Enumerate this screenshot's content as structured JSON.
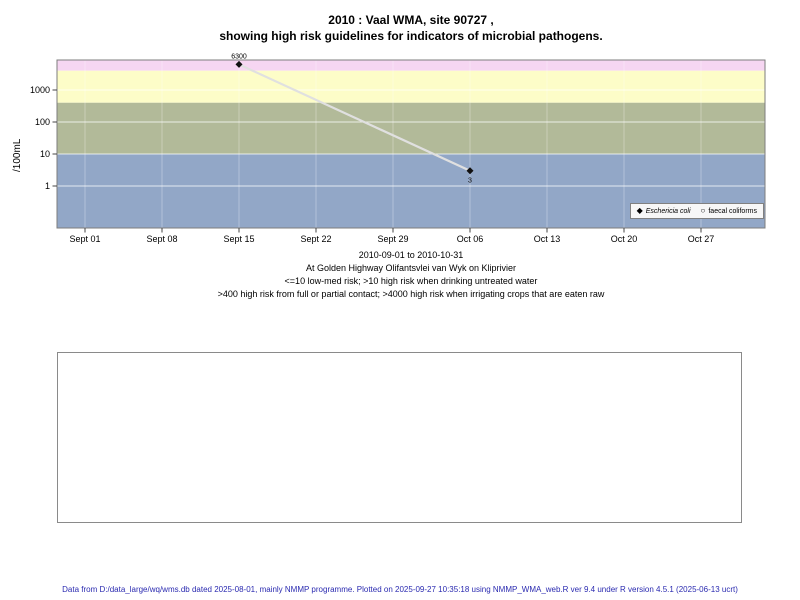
{
  "title": {
    "line1": "2010 : Vaal WMA, site 90727 ,",
    "line2": "showing high risk guidelines for indicators of microbial pathogens."
  },
  "chart_data": {
    "type": "scatter",
    "title": "2010 : Vaal WMA, site 90727, showing high risk guidelines for indicators of microbial pathogens.",
    "ylabel": "/100mL",
    "y_scale": "log",
    "y_ticks": [
      1,
      10,
      100,
      1000
    ],
    "x_ticks": [
      {
        "label": "Sept 01",
        "date": "2010-09-01"
      },
      {
        "label": "Sept 08",
        "date": "2010-09-08"
      },
      {
        "label": "Sept 15",
        "date": "2010-09-15"
      },
      {
        "label": "Sept 22",
        "date": "2010-09-22"
      },
      {
        "label": "Sept 29",
        "date": "2010-09-29"
      },
      {
        "label": "Oct 06",
        "date": "2010-10-06"
      },
      {
        "label": "Oct 13",
        "date": "2010-10-13"
      },
      {
        "label": "Oct 20",
        "date": "2010-10-20"
      },
      {
        "label": "Oct 27",
        "date": "2010-10-27"
      }
    ],
    "series": [
      {
        "name": "Eschericia coli",
        "marker": "diamond",
        "line_color": "#e0e0e0",
        "marker_color": "#111111",
        "points": [
          {
            "date": "2010-09-15",
            "value": 6300,
            "label": "6300",
            "label_pos": "above"
          },
          {
            "date": "2010-10-06",
            "value": 3,
            "label": "3",
            "label_pos": "below"
          }
        ]
      },
      {
        "name": "faecal coliforms",
        "marker": "circle",
        "points": []
      }
    ],
    "risk_bands": [
      {
        "name": "high-risk-irrigation",
        "min": 4000,
        "max": null,
        "color": "#f6d6f2"
      },
      {
        "name": "high-risk-contact",
        "min": 400,
        "max": 4000,
        "color": "#fdfdc8"
      },
      {
        "name": "high-risk-drinking",
        "min": 10,
        "max": 400,
        "color": "#b2ba99"
      },
      {
        "name": "low-med-risk",
        "min": null,
        "max": 10,
        "color": "#92a7c7"
      }
    ],
    "legend": [
      {
        "symbol": "diamond",
        "label": "Eschericia coli",
        "italic": true
      },
      {
        "symbol": "circle",
        "label": "faecal coliforms",
        "italic": false
      }
    ],
    "grid": true,
    "legend_position": "bottom-right"
  },
  "captions": [
    "2010-09-01 to 2010-10-31",
    "At Golden Highway Olifantsvlei van Wyk on Kliprivier",
    "<=10 low-med risk; >10 high risk when drinking untreated water",
    ">400 high risk from full or partial contact; >4000 high risk when irrigating crops that are eaten raw"
  ],
  "footer": "Data from D:/data_large/wq/wms.db dated 2025-08-01, mainly NMMP programme. Plotted on 2025-09-27 10:35:18 using NMMP_WMA_web.R ver 9.4 under R version 4.5.1 (2025-06-13 ucrt)"
}
